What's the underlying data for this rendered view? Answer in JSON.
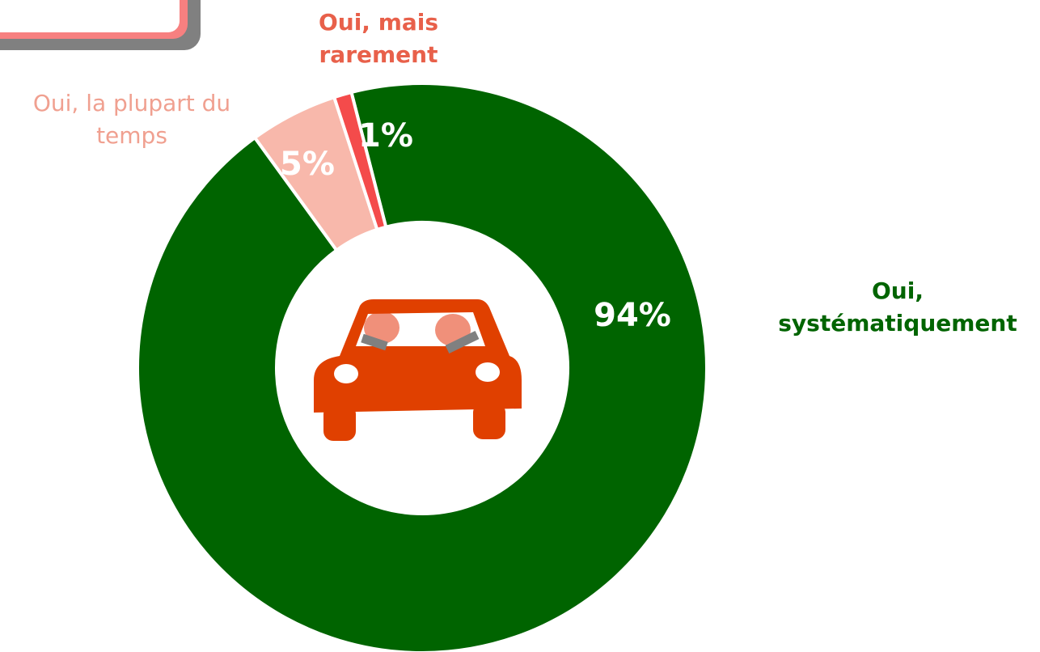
{
  "chart_data": {
    "type": "donut",
    "categories": [
      "Oui, systématiquement",
      "Oui, la plupart du temps",
      "Oui, mais rarement"
    ],
    "values": [
      94,
      5,
      1
    ],
    "value_labels": [
      "94%",
      "5%",
      "1%"
    ],
    "colors": [
      "#006400",
      "#f8b8ab",
      "#f44b4b"
    ]
  }
}
